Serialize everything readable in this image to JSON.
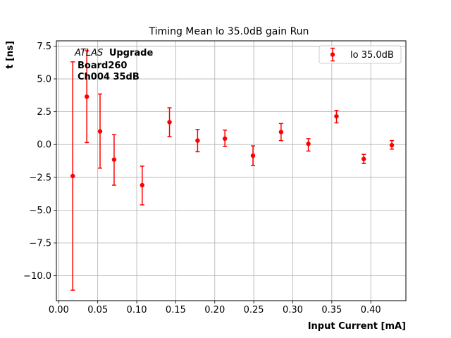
{
  "chart_data": {
    "type": "scatter",
    "title": "Timing Mean lo 35.0dB gain Run",
    "xlabel": "Input Current [mA]",
    "ylabel": "t [ns]",
    "xlim": [
      -0.003,
      0.445
    ],
    "ylim": [
      -11.9,
      7.9
    ],
    "xticks": [
      0.0,
      0.05,
      0.1,
      0.15,
      0.2,
      0.25,
      0.3,
      0.35,
      0.4
    ],
    "xtick_labels": [
      "0.00",
      "0.05",
      "0.10",
      "0.15",
      "0.20",
      "0.25",
      "0.30",
      "0.35",
      "0.40"
    ],
    "yticks": [
      -10.0,
      -7.5,
      -5.0,
      -2.5,
      0.0,
      2.5,
      5.0,
      7.5
    ],
    "ytick_labels": [
      "−10.0",
      "−7.5",
      "−5.0",
      "−2.5",
      "0.0",
      "2.5",
      "5.0",
      "7.5"
    ],
    "grid": true,
    "legend_position": "top-right",
    "color": "#ff0000",
    "series": [
      {
        "name": "lo 35.0dB",
        "points": [
          {
            "x": 0.018,
            "y": -2.4,
            "yerr_low": -11.1,
            "yerr_high": 6.3
          },
          {
            "x": 0.036,
            "y": 3.65,
            "yerr_low": 0.15,
            "yerr_high": 7.15
          },
          {
            "x": 0.053,
            "y": 1.0,
            "yerr_low": -1.8,
            "yerr_high": 3.85
          },
          {
            "x": 0.071,
            "y": -1.15,
            "yerr_low": -3.1,
            "yerr_high": 0.75
          },
          {
            "x": 0.107,
            "y": -3.1,
            "yerr_low": -4.6,
            "yerr_high": -1.65
          },
          {
            "x": 0.142,
            "y": 1.7,
            "yerr_low": 0.6,
            "yerr_high": 2.8
          },
          {
            "x": 0.178,
            "y": 0.3,
            "yerr_low": -0.55,
            "yerr_high": 1.15
          },
          {
            "x": 0.213,
            "y": 0.45,
            "yerr_low": -0.15,
            "yerr_high": 1.1
          },
          {
            "x": 0.249,
            "y": -0.85,
            "yerr_low": -1.6,
            "yerr_high": -0.1
          },
          {
            "x": 0.285,
            "y": 0.95,
            "yerr_low": 0.3,
            "yerr_high": 1.6
          },
          {
            "x": 0.32,
            "y": 0.05,
            "yerr_low": -0.5,
            "yerr_high": 0.45
          },
          {
            "x": 0.356,
            "y": 2.15,
            "yerr_low": 1.65,
            "yerr_high": 2.6
          },
          {
            "x": 0.391,
            "y": -1.1,
            "yerr_low": -1.45,
            "yerr_high": -0.75
          },
          {
            "x": 0.427,
            "y": -0.05,
            "yerr_low": -0.35,
            "yerr_high": 0.3
          }
        ]
      }
    ],
    "annotation": {
      "atlas": "ATLAS",
      "upgrade": "Upgrade",
      "board": "Board260",
      "channel": "Ch004 35dB"
    }
  }
}
